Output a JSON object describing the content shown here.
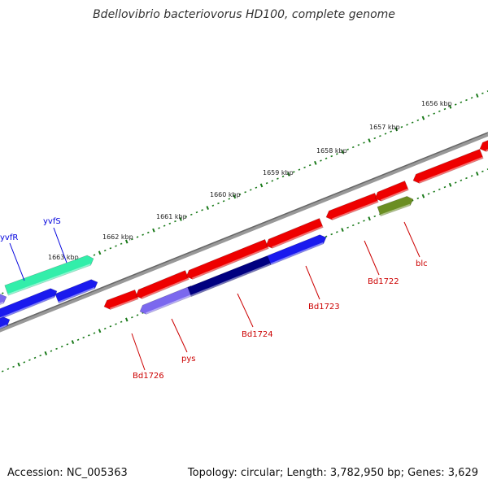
{
  "title": "Bdellovibrio bacteriovorus HD100, complete genome",
  "accession_text": "Accession: NC_005363",
  "summary_text": "Topology: circular; Length: 3,782,950 bp; Genes: 3,629",
  "tick_labels": [
    "1656 kbp",
    "1657 kbp",
    "1658 kbp",
    "1659 kbp",
    "1660 kbp",
    "1661 kbp",
    "1662 kbp",
    "1663 kbp"
  ],
  "gene_labels": [
    {
      "name": "yvfR",
      "color": "#0000dd"
    },
    {
      "name": "yvfS",
      "color": "#0000dd"
    },
    {
      "name": "Bd1726",
      "color": "#cc0000"
    },
    {
      "name": "pys",
      "color": "#cc0000"
    },
    {
      "name": "Bd1724",
      "color": "#cc0000"
    },
    {
      "name": "Bd1723",
      "color": "#cc0000"
    },
    {
      "name": "Bd1722",
      "color": "#cc0000"
    },
    {
      "name": "blc",
      "color": "#cc0000"
    }
  ],
  "colors": {
    "backbone": "#808080",
    "tick": "#1a7a1a",
    "red_gene": "#ee0000",
    "blue_gene": "#1a1aee",
    "teal_gene": "#33eeaa",
    "navy_gene": "#000080",
    "lavender_gene": "#7b68ee",
    "olive_gene": "#6b8e23"
  }
}
